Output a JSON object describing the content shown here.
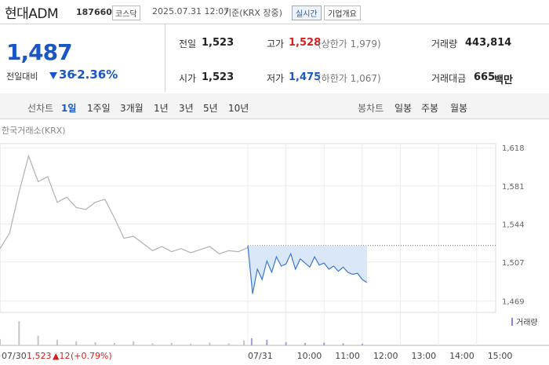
{
  "header": {
    "name": "현대ADM",
    "code": "187660",
    "market": "코스닥",
    "datetime": "2025.07.31 12:07",
    "basis": "기준(KRX 장중)",
    "realtime": "실시간",
    "company": "기업개요"
  },
  "summary": {
    "price": "1,487",
    "change_label": "전일대비",
    "change": "36",
    "change_pct": "-2.36%"
  },
  "stats": [
    [
      {
        "label": "전일",
        "value": "1,523"
      },
      {
        "label": "고가",
        "value": "1,528",
        "note": "(상한가 1,979)"
      },
      {
        "label": "거래량",
        "value": "443,814"
      }
    ],
    [
      {
        "label": "시가",
        "value": "1,523"
      },
      {
        "label": "저가",
        "value": "1,475",
        "note": "(하한가 1,067)"
      },
      {
        "label": "거래대금",
        "value": "665",
        "unit": "백만"
      }
    ]
  ],
  "tabs": {
    "line_label": "선차트",
    "line": [
      "1일",
      "1주일",
      "3개월",
      "1년",
      "3년",
      "5년",
      "10년"
    ],
    "candle_label": "봉차트",
    "candle": [
      "일봉",
      "주봉",
      "월봉"
    ]
  },
  "chart_data": {
    "type": "line",
    "source": "한국거래소(KRX)",
    "xlim": [
      0,
      13
    ],
    "xticks": [
      {
        "value": 6.5,
        "label": "07/31"
      },
      {
        "value": 7.5,
        "label": "10:00"
      },
      {
        "value": 8.5,
        "label": "11:00"
      },
      {
        "value": 9.5,
        "label": "12:00"
      },
      {
        "value": 10.5,
        "label": "13:00"
      },
      {
        "value": 11.5,
        "label": "14:00"
      },
      {
        "value": 12.5,
        "label": "15:00"
      }
    ],
    "ylim": [
      1458,
      1622
    ],
    "yticks": [
      {
        "value": 1469,
        "label": "1,469"
      },
      {
        "value": 1507,
        "label": "1,507"
      },
      {
        "value": 1544,
        "label": "1,544"
      },
      {
        "value": 1581,
        "label": "1,581"
      },
      {
        "value": 1618,
        "label": "1,618"
      }
    ],
    "grid": true,
    "prev_close": 1523,
    "series": [
      {
        "color": "#b0b0b0",
        "x": [
          0,
          0.25,
          0.5,
          0.75,
          1,
          1.25,
          1.5,
          1.75,
          2,
          2.25,
          2.5,
          2.75,
          3,
          3.25,
          3.5,
          3.75,
          4,
          4.25,
          4.5,
          4.75,
          5,
          5.25,
          5.5,
          5.75,
          6,
          6.25,
          6.5
        ],
        "values": [
          1520,
          1535,
          1575,
          1610,
          1585,
          1590,
          1565,
          1570,
          1560,
          1558,
          1565,
          1568,
          1550,
          1530,
          1532,
          1525,
          1518,
          1522,
          1517,
          1520,
          1516,
          1519,
          1522,
          1515,
          1518,
          1517,
          1521
        ]
      },
      {
        "color": "#3a78d0",
        "fill": "#d6e4f7",
        "x": [
          6.5,
          6.625,
          6.75,
          6.875,
          7,
          7.125,
          7.25,
          7.375,
          7.5,
          7.625,
          7.75,
          7.875,
          8,
          8.125,
          8.25,
          8.375,
          8.5,
          8.625,
          8.75,
          8.875,
          9,
          9.125,
          9.25,
          9.375,
          9.5,
          9.625
        ],
        "values": [
          1523,
          1476,
          1500,
          1490,
          1508,
          1497,
          1512,
          1503,
          1505,
          1515,
          1500,
          1510,
          1506,
          1502,
          1512,
          1504,
          1506,
          1500,
          1503,
          1498,
          1502,
          1497,
          1495,
          1496,
          1490,
          1487
        ]
      }
    ],
    "volume": {
      "label": "거래량",
      "legend_color": "#8f7fd0",
      "ylim": [
        0,
        35000
      ],
      "series": [
        {
          "color": "#c4c4c4",
          "x": [
            0,
            0.5,
            1,
            1.5,
            2,
            2.5,
            3,
            3.5,
            4,
            4.5,
            5,
            5.5,
            6,
            6.4
          ],
          "values": [
            8000,
            30000,
            12000,
            7000,
            5000,
            4000,
            3000,
            5000,
            2500,
            3000,
            2000,
            3500,
            2500,
            6000
          ]
        },
        {
          "color": "#a99be0",
          "x": [
            6.6,
            7,
            7.5,
            8,
            8.5,
            9,
            9.5
          ],
          "values": [
            9000,
            7000,
            4000,
            3000,
            3500,
            2500,
            2000
          ]
        }
      ]
    },
    "footer": {
      "date": "07/30",
      "price": "1,523",
      "change": "▲12",
      "pct": "(+0.79%)"
    }
  }
}
